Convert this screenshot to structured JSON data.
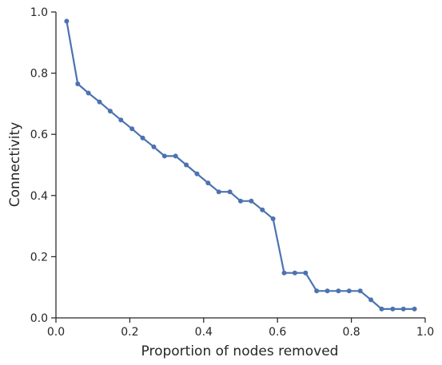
{
  "chart_data": {
    "type": "line",
    "xlabel": "Proportion of nodes removed",
    "ylabel": "Connectivity",
    "xlim": [
      0,
      1
    ],
    "ylim": [
      0,
      1
    ],
    "xticks": [
      "0.0",
      "0.2",
      "0.4",
      "0.6",
      "0.8",
      "1.0"
    ],
    "yticks": [
      "0.0",
      "0.2",
      "0.4",
      "0.6",
      "0.8",
      "1.0"
    ],
    "grid": false,
    "line_color": "#4c72b0",
    "axis_color": "#262626",
    "series": [
      {
        "x": [
          0.029,
          0.059,
          0.088,
          0.118,
          0.147,
          0.176,
          0.206,
          0.235,
          0.265,
          0.294,
          0.324,
          0.353,
          0.382,
          0.412,
          0.441,
          0.471,
          0.5,
          0.529,
          0.559,
          0.588,
          0.618,
          0.647,
          0.676,
          0.706,
          0.735,
          0.765,
          0.794,
          0.824,
          0.853,
          0.882,
          0.912,
          0.941,
          0.971
        ],
        "y": [
          0.97,
          0.765,
          0.735,
          0.706,
          0.676,
          0.647,
          0.618,
          0.588,
          0.559,
          0.529,
          0.529,
          0.5,
          0.471,
          0.441,
          0.412,
          0.412,
          0.382,
          0.382,
          0.353,
          0.324,
          0.147,
          0.147,
          0.147,
          0.088,
          0.088,
          0.088,
          0.088,
          0.088,
          0.059,
          0.029,
          0.029,
          0.029,
          0.029
        ]
      }
    ]
  }
}
